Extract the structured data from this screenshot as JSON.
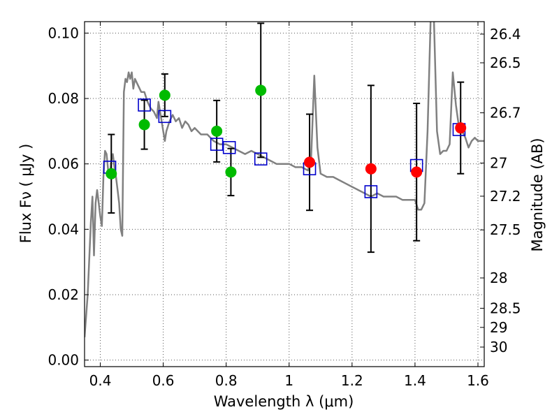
{
  "chart_data": {
    "type": "scatter",
    "xlabel": "Wavelength  λ (μm)",
    "ylabel": "Flux  Fν  ( μJy )",
    "ylabel_right": "Magnitude (AB)",
    "xlim": [
      0.35,
      1.62
    ],
    "ylim": [
      -0.002,
      0.1035
    ],
    "grid": true,
    "x_ticks": [
      {
        "value": 0.4,
        "label": "0.4"
      },
      {
        "value": 0.6,
        "label": "0.6"
      },
      {
        "value": 0.8,
        "label": "0.8"
      },
      {
        "value": 1.0,
        "label": "1"
      },
      {
        "value": 1.2,
        "label": "1.2"
      },
      {
        "value": 1.4,
        "label": "1.4"
      },
      {
        "value": 1.6,
        "label": "1.6"
      }
    ],
    "y_ticks": [
      {
        "value": 0.0,
        "label": "0.00"
      },
      {
        "value": 0.02,
        "label": "0.02"
      },
      {
        "value": 0.04,
        "label": "0.04"
      },
      {
        "value": 0.06,
        "label": "0.06"
      },
      {
        "value": 0.08,
        "label": "0.08"
      },
      {
        "value": 0.1,
        "label": "0.10"
      }
    ],
    "right_ticks": [
      {
        "flux": 0.09968,
        "label": "26.4"
      },
      {
        "flux": 0.09091,
        "label": "26.5"
      },
      {
        "flux": 0.07562,
        "label": "26.7"
      },
      {
        "flux": 0.06026,
        "label": "27"
      },
      {
        "flux": 0.05012,
        "label": "27.2"
      },
      {
        "flux": 0.03981,
        "label": "27.5"
      },
      {
        "flux": 0.02512,
        "label": "28"
      },
      {
        "flux": 0.01585,
        "label": "28.5"
      },
      {
        "flux": 0.01,
        "label": "29"
      },
      {
        "flux": 0.00398,
        "label": "30"
      }
    ],
    "series": [
      {
        "name": "model_spectrum",
        "style": "line",
        "color": "#808080",
        "points": [
          [
            0.35,
            0.007
          ],
          [
            0.36,
            0.02
          ],
          [
            0.37,
            0.042
          ],
          [
            0.375,
            0.05
          ],
          [
            0.38,
            0.032
          ],
          [
            0.385,
            0.048
          ],
          [
            0.39,
            0.052
          ],
          [
            0.395,
            0.048
          ],
          [
            0.4,
            0.044
          ],
          [
            0.405,
            0.041
          ],
          [
            0.41,
            0.056
          ],
          [
            0.415,
            0.064
          ],
          [
            0.42,
            0.063
          ],
          [
            0.425,
            0.058
          ],
          [
            0.43,
            0.056
          ],
          [
            0.435,
            0.061
          ],
          [
            0.44,
            0.063
          ],
          [
            0.445,
            0.059
          ],
          [
            0.45,
            0.056
          ],
          [
            0.455,
            0.052
          ],
          [
            0.46,
            0.048
          ],
          [
            0.465,
            0.04
          ],
          [
            0.47,
            0.038
          ],
          [
            0.475,
            0.082
          ],
          [
            0.48,
            0.086
          ],
          [
            0.485,
            0.085
          ],
          [
            0.49,
            0.088
          ],
          [
            0.495,
            0.086
          ],
          [
            0.5,
            0.088
          ],
          [
            0.505,
            0.083
          ],
          [
            0.51,
            0.086
          ],
          [
            0.52,
            0.084
          ],
          [
            0.53,
            0.082
          ],
          [
            0.54,
            0.082
          ],
          [
            0.55,
            0.079
          ],
          [
            0.56,
            0.077
          ],
          [
            0.57,
            0.076
          ],
          [
            0.58,
            0.074
          ],
          [
            0.585,
            0.079
          ],
          [
            0.59,
            0.076
          ],
          [
            0.6,
            0.07
          ],
          [
            0.605,
            0.067
          ],
          [
            0.61,
            0.07
          ],
          [
            0.62,
            0.073
          ],
          [
            0.63,
            0.075
          ],
          [
            0.64,
            0.073
          ],
          [
            0.65,
            0.074
          ],
          [
            0.66,
            0.071
          ],
          [
            0.67,
            0.073
          ],
          [
            0.68,
            0.072
          ],
          [
            0.69,
            0.07
          ],
          [
            0.7,
            0.071
          ],
          [
            0.72,
            0.069
          ],
          [
            0.74,
            0.069
          ],
          [
            0.76,
            0.067
          ],
          [
            0.78,
            0.066
          ],
          [
            0.8,
            0.066
          ],
          [
            0.82,
            0.065
          ],
          [
            0.84,
            0.064
          ],
          [
            0.86,
            0.063
          ],
          [
            0.88,
            0.064
          ],
          [
            0.9,
            0.063
          ],
          [
            0.92,
            0.062
          ],
          [
            0.94,
            0.061
          ],
          [
            0.96,
            0.06
          ],
          [
            0.98,
            0.06
          ],
          [
            1.0,
            0.06
          ],
          [
            1.02,
            0.059
          ],
          [
            1.04,
            0.059
          ],
          [
            1.06,
            0.058
          ],
          [
            1.07,
            0.062
          ],
          [
            1.08,
            0.087
          ],
          [
            1.09,
            0.065
          ],
          [
            1.1,
            0.057
          ],
          [
            1.12,
            0.056
          ],
          [
            1.14,
            0.056
          ],
          [
            1.16,
            0.055
          ],
          [
            1.18,
            0.054
          ],
          [
            1.2,
            0.053
          ],
          [
            1.22,
            0.052
          ],
          [
            1.24,
            0.051
          ],
          [
            1.26,
            0.05
          ],
          [
            1.28,
            0.051
          ],
          [
            1.3,
            0.05
          ],
          [
            1.32,
            0.05
          ],
          [
            1.34,
            0.05
          ],
          [
            1.36,
            0.049
          ],
          [
            1.38,
            0.049
          ],
          [
            1.4,
            0.049
          ],
          [
            1.41,
            0.046
          ],
          [
            1.42,
            0.046
          ],
          [
            1.43,
            0.048
          ],
          [
            1.44,
            0.07
          ],
          [
            1.45,
            0.105
          ],
          [
            1.46,
            0.105
          ],
          [
            1.47,
            0.07
          ],
          [
            1.48,
            0.063
          ],
          [
            1.49,
            0.064
          ],
          [
            1.5,
            0.064
          ],
          [
            1.51,
            0.066
          ],
          [
            1.52,
            0.088
          ],
          [
            1.53,
            0.078
          ],
          [
            1.54,
            0.071
          ],
          [
            1.55,
            0.07
          ],
          [
            1.56,
            0.068
          ],
          [
            1.57,
            0.065
          ],
          [
            1.58,
            0.067
          ],
          [
            1.59,
            0.068
          ],
          [
            1.6,
            0.067
          ],
          [
            1.62,
            0.067
          ]
        ]
      },
      {
        "name": "model_photometry",
        "style": "open_square",
        "color": "#0000cc",
        "points": [
          [
            0.43,
            0.059
          ],
          [
            0.54,
            0.078
          ],
          [
            0.605,
            0.0745
          ],
          [
            0.77,
            0.066
          ],
          [
            0.81,
            0.065
          ],
          [
            0.91,
            0.0615
          ],
          [
            1.065,
            0.0585
          ],
          [
            1.26,
            0.0515
          ],
          [
            1.405,
            0.0595
          ],
          [
            1.54,
            0.0705
          ]
        ]
      },
      {
        "name": "observed_optical",
        "style": "filled_circle",
        "color": "#00bb00",
        "points": [
          {
            "x": 0.435,
            "y": 0.057,
            "err": 0.012
          },
          {
            "x": 0.54,
            "y": 0.072,
            "err": 0.0075
          },
          {
            "x": 0.605,
            "y": 0.081,
            "err": 0.0065
          },
          {
            "x": 0.77,
            "y": 0.07,
            "err": 0.0094
          },
          {
            "x": 0.815,
            "y": 0.0575,
            "err": 0.0072
          },
          {
            "x": 0.91,
            "y": 0.0825,
            "err": 0.0205
          }
        ]
      },
      {
        "name": "observed_nir",
        "style": "filled_circle",
        "color": "#ff0000",
        "points": [
          {
            "x": 1.065,
            "y": 0.0605,
            "err": 0.0147
          },
          {
            "x": 1.26,
            "y": 0.0585,
            "err": 0.0255
          },
          {
            "x": 1.405,
            "y": 0.0575,
            "err": 0.021
          },
          {
            "x": 1.545,
            "y": 0.071,
            "err": 0.014
          }
        ]
      }
    ]
  }
}
